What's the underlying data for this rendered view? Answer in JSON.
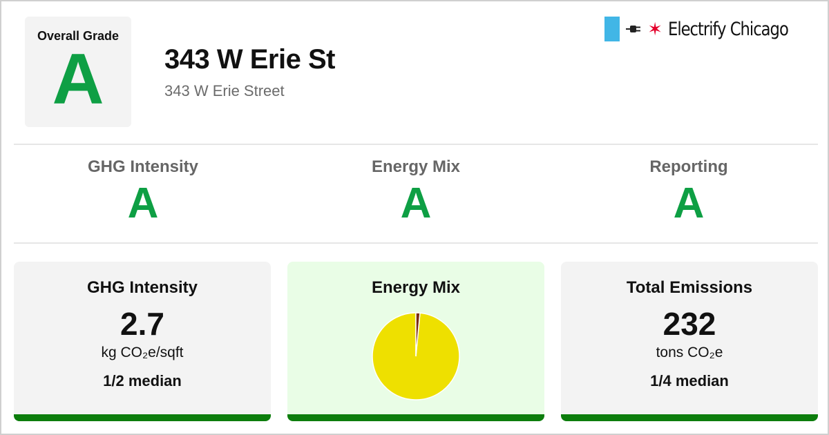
{
  "overall": {
    "label": "Overall Grade",
    "grade": "A"
  },
  "building": {
    "name": "343 W Erie St",
    "address": "343 W Erie Street"
  },
  "brand": {
    "name": "Electrify Chicago",
    "star": "✶",
    "flag_color": "#41b6e6",
    "star_color": "#e4002b"
  },
  "grades": [
    {
      "label": "GHG Intensity",
      "grade": "A"
    },
    {
      "label": "Energy Mix",
      "grade": "A"
    },
    {
      "label": "Reporting",
      "grade": "A"
    }
  ],
  "cards": {
    "ghg": {
      "title": "GHG Intensity",
      "value": "2.7",
      "unit": "kg CO₂e/sqft",
      "note": "1/2 median"
    },
    "mix": {
      "title": "Energy Mix"
    },
    "emissions": {
      "title": "Total Emissions",
      "value": "232",
      "unit": "tons CO₂e",
      "note": "1/4 median"
    }
  },
  "colors": {
    "grade_green": "#0e9f44",
    "card_bar": "#0c7d0c",
    "mix_card_bg": "#e9fde6"
  },
  "chart_data": {
    "type": "pie",
    "title": "",
    "slices": [
      {
        "value": 98.5,
        "color": "#eee000"
      },
      {
        "value": 1.5,
        "color": "#7a2a12"
      }
    ]
  }
}
